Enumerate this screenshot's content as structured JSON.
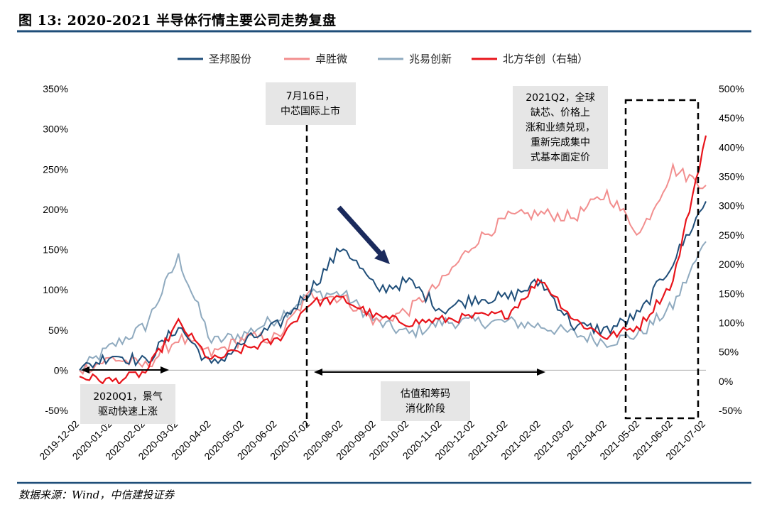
{
  "title": "图 13: 2020-2021 半导体行情主要公司走势复盘",
  "source": "数据来源：Wind，中信建投证券",
  "colors": {
    "series0": "#1f4e79",
    "series1": "#f28e8e",
    "series2": "#8faabf",
    "series3": "#e8141b",
    "rule": "#1f4e79",
    "annbox": "#e6e6e6",
    "arrow": "#1a2a5c"
  },
  "chart_data": {
    "type": "line",
    "x_labels": [
      "2019-12-02",
      "2020-01-02",
      "2020-02-02",
      "2020-03-02",
      "2020-04-02",
      "2020-05-02",
      "2020-06-02",
      "2020-07-02",
      "2020-08-02",
      "2020-09-02",
      "2020-10-02",
      "2020-11-02",
      "2020-12-02",
      "2021-01-02",
      "2021-02-02",
      "2021-03-02",
      "2021-04-02",
      "2021-05-02",
      "2021-06-02",
      "2021-07-02"
    ],
    "y_left": {
      "min": -50,
      "max": 350,
      "step": 50,
      "unit": "%"
    },
    "y_right": {
      "min": -50,
      "max": 500,
      "step": 50,
      "unit": "%"
    },
    "legend_position": "top",
    "series": [
      {
        "name": "圣邦股份",
        "axis": "left",
        "values": [
          0,
          20,
          10,
          55,
          5,
          35,
          55,
          100,
          155,
          100,
          110,
          75,
          90,
          90,
          110,
          55,
          50,
          70,
          135,
          210
        ]
      },
      {
        "name": "卓胜微",
        "axis": "left",
        "values": [
          0,
          15,
          5,
          40,
          20,
          40,
          40,
          95,
          90,
          60,
          75,
          110,
          160,
          190,
          195,
          190,
          220,
          170,
          250,
          230
        ]
      },
      {
        "name": "兆易创新",
        "axis": "left",
        "values": [
          0,
          30,
          55,
          140,
          35,
          45,
          65,
          95,
          95,
          60,
          45,
          60,
          60,
          60,
          55,
          45,
          35,
          45,
          80,
          160
        ]
      },
      {
        "name": "北方华创（右轴）",
        "axis": "right",
        "values": [
          8,
          0,
          15,
          100,
          35,
          55,
          70,
          135,
          140,
          110,
          100,
          105,
          110,
          115,
          175,
          105,
          75,
          95,
          170,
          420
        ]
      }
    ],
    "annotations": [
      {
        "text": [
          "7月16日，",
          "中芯国际上市"
        ]
      },
      {
        "text": [
          "2021Q2，全球",
          "缺芯、价格上",
          "涨和业绩兑现，",
          "重新完成集中",
          "式基本面定价"
        ]
      },
      {
        "text": [
          "2020Q1，景气",
          "驱动快速上涨"
        ]
      },
      {
        "text": [
          "估值和筹码",
          "消化阶段"
        ]
      }
    ]
  }
}
